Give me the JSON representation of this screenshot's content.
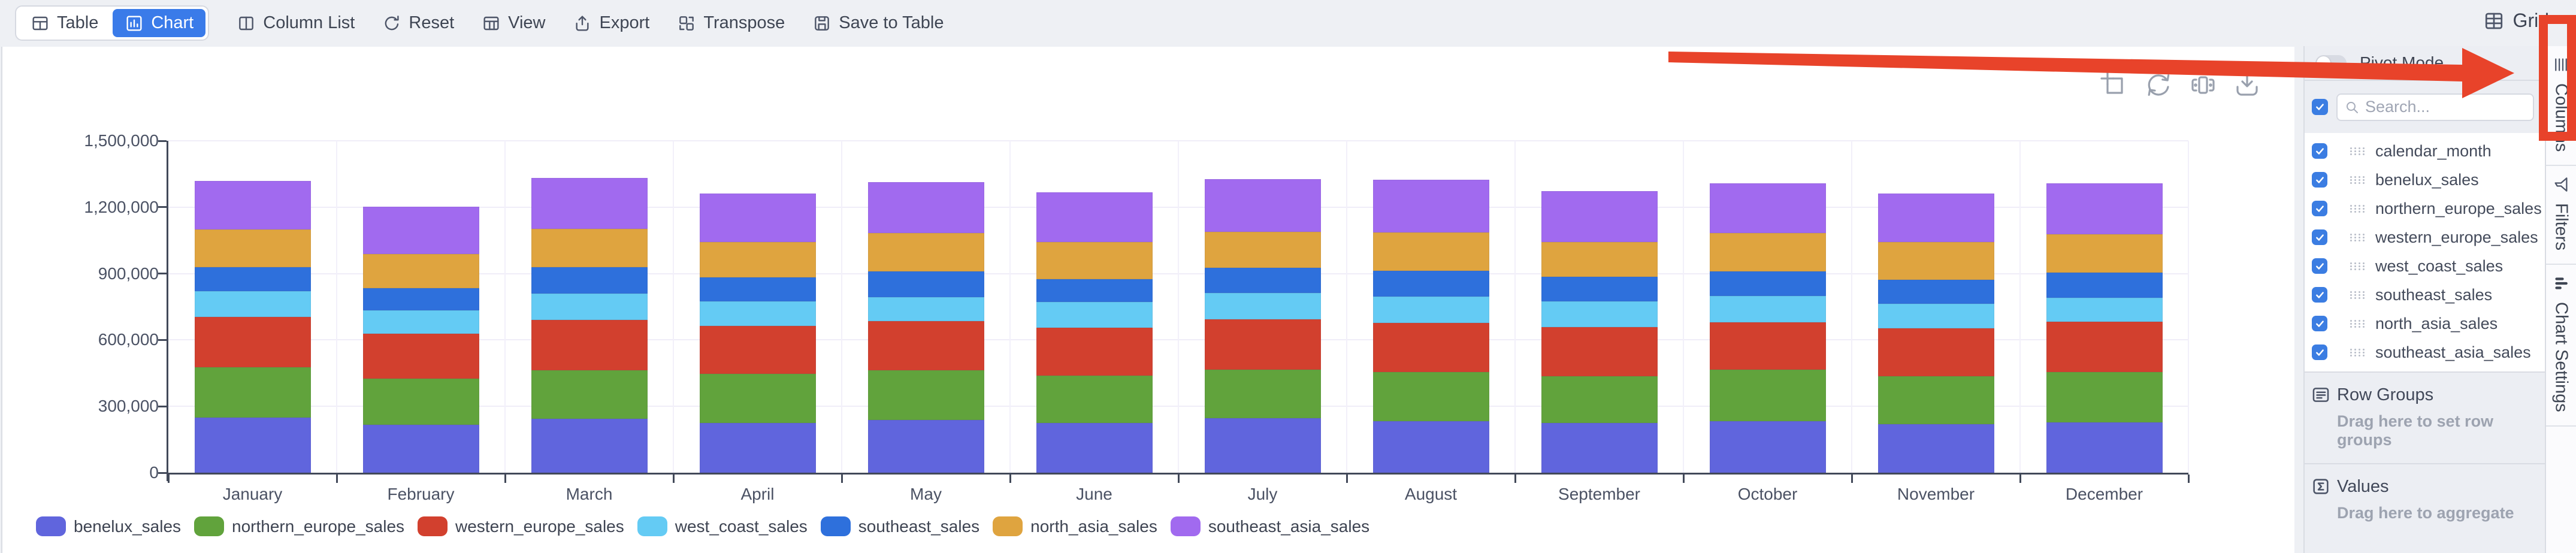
{
  "toolbar": {
    "table_label": "Table",
    "chart_label": "Chart",
    "buttons": [
      "Column List",
      "Reset",
      "View",
      "Export",
      "Transpose",
      "Save to Table"
    ],
    "grid_label": "Grid"
  },
  "chart_toolbar": {
    "icons": [
      "zoom-region-icon",
      "refresh-icon",
      "panels-icon",
      "download-icon"
    ]
  },
  "chart_data": {
    "type": "bar",
    "stacked": true,
    "title": "",
    "xlabel": "",
    "ylabel": "",
    "categories": [
      "January",
      "February",
      "March",
      "April",
      "May",
      "June",
      "July",
      "August",
      "September",
      "October",
      "November",
      "December"
    ],
    "series": [
      {
        "name": "benelux_sales",
        "color": "#6065dd",
        "values": [
          250000,
          216000,
          243000,
          225000,
          237000,
          226000,
          246000,
          233000,
          225000,
          234000,
          220000,
          227000
        ]
      },
      {
        "name": "northern_europe_sales",
        "color": "#61a33c",
        "values": [
          227000,
          208000,
          221000,
          223000,
          226000,
          214000,
          221000,
          223000,
          212000,
          232000,
          217000,
          229000
        ]
      },
      {
        "name": "western_europe_sales",
        "color": "#d2402e",
        "values": [
          228000,
          205000,
          227000,
          216000,
          223000,
          214000,
          227000,
          221000,
          221000,
          214000,
          216000,
          226000
        ]
      },
      {
        "name": "west_coast_sales",
        "color": "#64cbf4",
        "values": [
          115000,
          104000,
          118000,
          110000,
          108000,
          117000,
          119000,
          119000,
          117000,
          120000,
          110000,
          110000
        ]
      },
      {
        "name": "southeast_sales",
        "color": "#2e70dc",
        "values": [
          109000,
          101000,
          119000,
          108000,
          117000,
          103000,
          112000,
          116000,
          110000,
          110000,
          109000,
          112000
        ]
      },
      {
        "name": "north_asia_sales",
        "color": "#dfa43f",
        "values": [
          170000,
          155000,
          175000,
          160000,
          173000,
          168000,
          164000,
          174000,
          157000,
          173000,
          170000,
          173000
        ]
      },
      {
        "name": "southeast_asia_sales",
        "color": "#a16aef",
        "values": [
          221000,
          212000,
          229000,
          220000,
          228000,
          224000,
          237000,
          238000,
          230000,
          226000,
          219000,
          231000
        ]
      }
    ],
    "ylim": [
      0,
      1500000
    ],
    "yticks": [
      "0",
      "300,000",
      "600,000",
      "900,000",
      "1,200,000",
      "1,500,000"
    ],
    "grid": true,
    "legend_position": "bottom"
  },
  "panel": {
    "pivot_mode_label": "Pivot Mode",
    "pivot_mode_on": false,
    "search_placeholder": "Search...",
    "select_all_checked": true,
    "columns": [
      "calendar_month",
      "benelux_sales",
      "northern_europe_sales",
      "western_europe_sales",
      "west_coast_sales",
      "southeast_sales",
      "north_asia_sales",
      "southeast_asia_sales"
    ],
    "row_groups": {
      "title": "Row Groups",
      "hint": "Drag here to set row groups"
    },
    "values": {
      "title": "Values",
      "hint": "Drag here to aggregate"
    }
  },
  "side_tabs": [
    {
      "label": "Columns"
    },
    {
      "label": "Filters"
    },
    {
      "label": "Chart Settings"
    }
  ],
  "annotation": {
    "color": "#e8432a",
    "highlighted_tab": "Columns"
  }
}
